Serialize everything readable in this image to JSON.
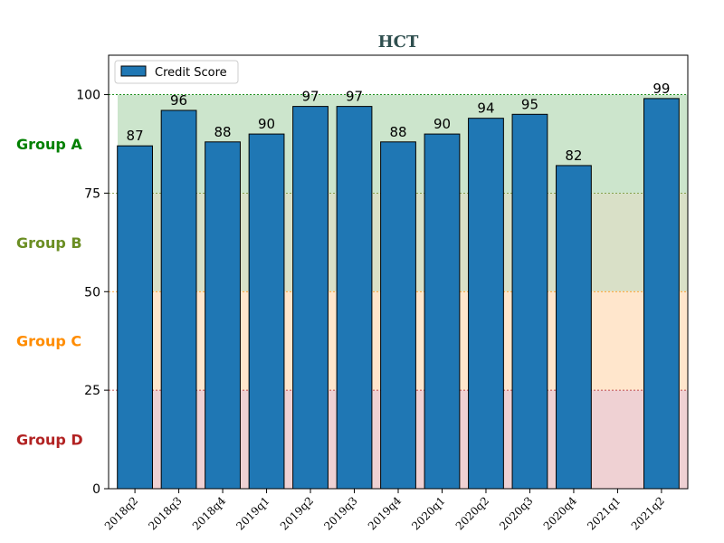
{
  "chart_data": {
    "type": "bar",
    "title": "HCT",
    "categories": [
      "2018q2",
      "2018q3",
      "2018q4",
      "2019q1",
      "2019q2",
      "2019q3",
      "2019q4",
      "2020q1",
      "2020q2",
      "2020q3",
      "2020q4",
      "2021q1",
      "2021q2"
    ],
    "series": [
      {
        "name": "Credit Score",
        "values": [
          87,
          96,
          88,
          90,
          97,
          97,
          88,
          90,
          94,
          95,
          82,
          null,
          99
        ],
        "color": "#1f77b4"
      }
    ],
    "data_labels": [
      "87",
      "96",
      "88",
      "90",
      "97",
      "97",
      "88",
      "90",
      "94",
      "95",
      "82",
      "",
      "99"
    ],
    "ylim": [
      0,
      110
    ],
    "yticks": [
      0,
      25,
      50,
      75,
      100
    ],
    "xlabel": "",
    "ylabel": "",
    "legend_position": "top-left",
    "bands": [
      {
        "label": "Group A",
        "from": 75,
        "to": 100,
        "fill": "#cce5cc",
        "label_color": "#008000",
        "line_color": "#008000"
      },
      {
        "label": "Group B",
        "from": 50,
        "to": 75,
        "fill": "#d9e0c7",
        "label_color": "#6b8e23",
        "line_color": "#6b8e23"
      },
      {
        "label": "Group C",
        "from": 25,
        "to": 50,
        "fill": "#ffe6cc",
        "label_color": "#ff8c00",
        "line_color": "#ff8c00"
      },
      {
        "label": "Group D",
        "from": 0,
        "to": 25,
        "fill": "#efd1d3",
        "label_color": "#b22222",
        "line_color": "#b22222"
      }
    ]
  }
}
